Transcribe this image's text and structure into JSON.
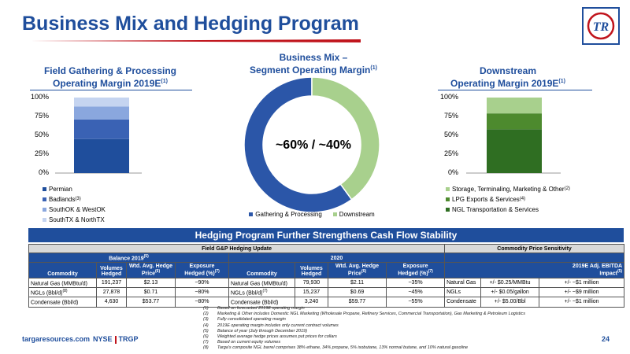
{
  "header": {
    "title": "Business Mix and Hedging Program",
    "logo_text": "TR"
  },
  "field_section": {
    "title_line1": "Field Gathering & Processing",
    "title_line2": "Operating Margin 2019E",
    "title_sup": "(1)"
  },
  "mix_section": {
    "title_line1": "Business Mix –",
    "title_line2": "Segment Operating Margin",
    "title_sup": "(1)",
    "center_label": "~60% / ~40%"
  },
  "downstream_section": {
    "title_line1": "Downstream",
    "title_line2": "Operating Margin 2019E",
    "title_sup": "(1)"
  },
  "y_ticks": [
    "100%",
    "75%",
    "50%",
    "25%",
    "0%"
  ],
  "chart_data": [
    {
      "type": "bar",
      "stacked": true,
      "categories": [
        ""
      ],
      "series": [
        {
          "name": "Permian",
          "sup": "",
          "values": [
            0.45
          ],
          "color": "#1f4e9c"
        },
        {
          "name": "Badlands",
          "sup": "(3)",
          "values": [
            0.26
          ],
          "color": "#3a62b4"
        },
        {
          "name": "SouthOK & WestOK",
          "sup": "",
          "values": [
            0.17
          ],
          "color": "#8aa7de"
        },
        {
          "name": "SouthTX & NorthTX",
          "sup": "",
          "values": [
            0.12
          ],
          "color": "#c5d4f0"
        }
      ],
      "ylim": [
        0,
        1
      ],
      "legend": "bottom"
    },
    {
      "type": "pie",
      "donut": true,
      "slices": [
        {
          "name": "Gathering & Processing",
          "value": 60,
          "color": "#2b56a8"
        },
        {
          "name": "Downstream",
          "value": 40,
          "color": "#a8d08d"
        }
      ],
      "legend": "bottom"
    },
    {
      "type": "bar",
      "stacked": true,
      "categories": [
        ""
      ],
      "series": [
        {
          "name": "NGL Transportation & Services",
          "sup": "",
          "values": [
            0.58
          ],
          "color": "#2f6e22"
        },
        {
          "name": "LPG Exports & Services",
          "sup": "(4)",
          "values": [
            0.21
          ],
          "color": "#4d8a2e"
        },
        {
          "name": "Storage, Terminaling, Marketing & Other",
          "sup": "(2)",
          "values": [
            0.21
          ],
          "color": "#a8d08d"
        }
      ],
      "ylim": [
        0,
        1
      ],
      "legend": "bottom"
    }
  ],
  "band_title": "Hedging Program Further Strengthens Cash Flow Stability",
  "table": {
    "group_left": "Field G&P Hedging Update",
    "group_right": "Commodity Price Sensitivity",
    "balance_label": "Balance 2019",
    "balance_sup": "(5)",
    "year_label": "2020",
    "col_commodity": "Commodity",
    "col_volumes1": "Volumes",
    "col_volumes2": "Hedged",
    "col_price1": "Wtd. Avg. Hedge",
    "col_price2": "Price",
    "col_price_sup": "(6)",
    "col_exposure1": "Exposure",
    "col_exposure2": "Hedged (%)",
    "col_exposure_sup": "(7)",
    "col_impact1": "2019E Adj. EBITDA",
    "col_impact2": "Impact",
    "col_impact_sup": "(5)",
    "rows": [
      {
        "c1": "Natural Gas (MMBtu/d)",
        "c1_sup": "",
        "v1": "191,237",
        "p1": "$2.13",
        "e1": "~90%",
        "c2": "Natural Gas (MMBtu/d)",
        "c2_sup": "",
        "v2": "79,930",
        "p2": "$2.11",
        "e2": "~35%",
        "s_name": "Natural Gas",
        "s_change": "+/- $0.25/MMBtu",
        "s_impact": "+/- ~$1 million"
      },
      {
        "c1": "NGLs (Bbl/d)",
        "c1_sup": "(8)",
        "v1": "27,878",
        "p1": "$0.71",
        "e1": "~80%",
        "c2": "NGLs (Bbl/d)",
        "c2_sup": "(7)",
        "v2": "15,237",
        "p2": "$0.69",
        "e2": "~45%",
        "s_name": "NGLs",
        "s_change": "+/- $0.05/gallon",
        "s_impact": "+/- ~$9 million"
      },
      {
        "c1": "Condensate (Bbl/d)",
        "c1_sup": "",
        "v1": "4,630",
        "p1": "$53.77",
        "e1": "~80%",
        "c2": "Condensate (Bbl/d)",
        "c2_sup": "",
        "v2": "3,240",
        "p2": "$59.77",
        "e2": "~55%",
        "s_name": "Condensate",
        "s_change": "+/- $5.00/Bbl",
        "s_impact": "+/- ~$1 million"
      }
    ]
  },
  "footnotes": [
    {
      "num": "(1)",
      "text": "Based on forecasted 2019E operating margin"
    },
    {
      "num": "(2)",
      "text": "Marketing & Other includes Domestic NGL Marketing (Wholesale Propane, Refinery Services, Commercial Transportation), Gas Marketing & Petroleum Logistics"
    },
    {
      "num": "(3)",
      "text": "Fully consolidated operating margin"
    },
    {
      "num": "(4)",
      "text": "2019E operating margin includes only current contract volumes"
    },
    {
      "num": "(5)",
      "text": "Balance of year (July through December 2019)"
    },
    {
      "num": "(6)",
      "text": "Weighted average hedge prices assumes put prices for collars"
    },
    {
      "num": "(7)",
      "text": "Based on current equity volumes"
    },
    {
      "num": "(8)",
      "text": "Targa's composite NGL barrel comprises 38% ethane, 34% propane, 5% isobutane, 13% normal butane, and 10% natural gasoline"
    }
  ],
  "footer": {
    "site": "targaresources.com",
    "exchange": "NYSE",
    "ticker": "TRGP",
    "page": "24"
  },
  "colors": {
    "brand_blue": "#1f4e9c",
    "accent_red": "#c0141c"
  }
}
